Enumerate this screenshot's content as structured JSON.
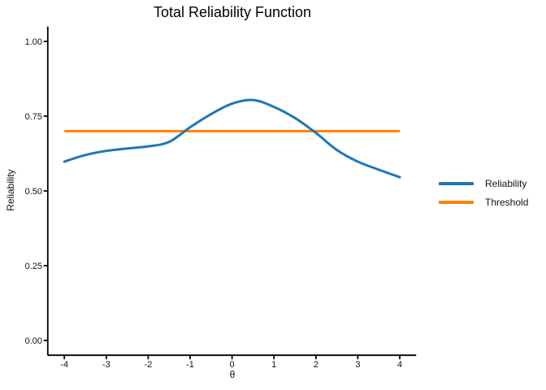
{
  "title": "Total Reliability Function",
  "colors": {
    "reliability": "#1f77b4",
    "threshold": "#ff7f0e",
    "axis": "#000000",
    "text": "#111111",
    "background": "#ffffff"
  },
  "y_axis": {
    "label": "Reliability",
    "tick_labels": [
      "0.00",
      "0.25",
      "0.50",
      "0.75",
      "1.00"
    ],
    "tick_values": [
      0,
      0.25,
      0.5,
      0.75,
      1
    ]
  },
  "x_axis": {
    "label": "θ",
    "tick_labels": [
      "-4",
      "-3",
      "-2",
      "-1",
      "0",
      "1",
      "2",
      "3",
      "4"
    ],
    "tick_values": [
      -4,
      -3,
      -2,
      -1,
      0,
      1,
      2,
      3,
      4
    ]
  },
  "legend": {
    "items": [
      {
        "label": "Reliability",
        "color": "#1f77b4"
      },
      {
        "label": "Threshold",
        "color": "#ff7f0e"
      }
    ]
  },
  "chart_data": {
    "type": "line",
    "title": "Total Reliability Function",
    "xlabel": "θ",
    "ylabel": "Reliability",
    "xlim": [
      -4,
      4
    ],
    "ylim": [
      0,
      1
    ],
    "grid": false,
    "legend_position": "right-center",
    "x": [
      -4,
      -3.5,
      -3,
      -2.5,
      -2,
      -1.5,
      -1,
      -0.5,
      0,
      0.5,
      1,
      1.5,
      2,
      2.5,
      3,
      3.5,
      4
    ],
    "series": [
      {
        "name": "Reliability",
        "color": "#1f77b4",
        "values": [
          0.598,
          0.62,
          0.634,
          0.642,
          0.649,
          0.664,
          0.713,
          0.757,
          0.792,
          0.804,
          0.781,
          0.744,
          0.694,
          0.637,
          0.598,
          0.571,
          0.546
        ]
      },
      {
        "name": "Threshold",
        "color": "#ff7f0e",
        "constant": 0.7
      }
    ]
  }
}
